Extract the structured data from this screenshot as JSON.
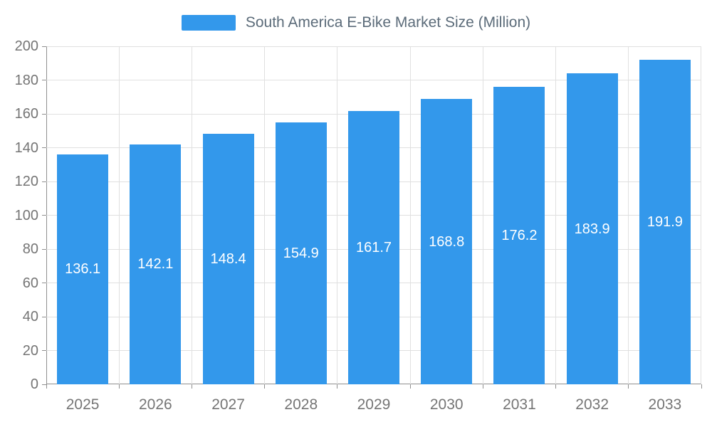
{
  "chart_data": {
    "type": "bar",
    "title": "South America E-Bike Market Size (Million)",
    "categories": [
      "2025",
      "2026",
      "2027",
      "2028",
      "2029",
      "2030",
      "2031",
      "2032",
      "2033"
    ],
    "values": [
      136.1,
      142.1,
      148.4,
      154.9,
      161.7,
      168.8,
      176.2,
      183.9,
      191.9
    ],
    "xlabel": "",
    "ylabel": "",
    "ylim": [
      0,
      200
    ],
    "yticks": [
      0,
      20,
      40,
      60,
      80,
      100,
      120,
      140,
      160,
      180,
      200
    ],
    "grid": true,
    "legend_position": "top",
    "colors": {
      "bar": "#3398EB",
      "value_label": "#ffffff",
      "axis_text": "#757575",
      "title_text": "#5b6b79",
      "grid_line": "#e0e0e0",
      "axis_line": "#8f8f8f",
      "background": "#ffffff"
    }
  }
}
